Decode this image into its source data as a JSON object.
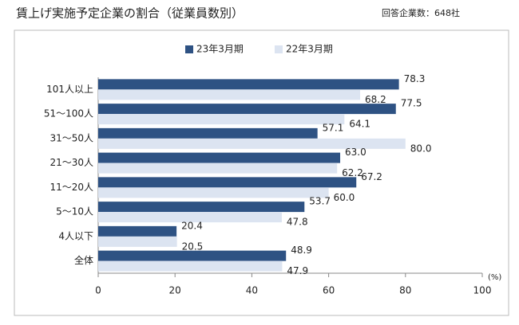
{
  "chart_data": {
    "type": "bar",
    "orientation": "horizontal",
    "title": "賃上げ実施予定企業の割合（従業員数別）",
    "note": "回答企業数：648社",
    "unit_label": "(%)",
    "categories": [
      "101人以上",
      "51～100人",
      "31～50人",
      "21～30人",
      "11～20人",
      "5～10人",
      "4人以下",
      "全体"
    ],
    "series": [
      {
        "name": "23年3月期",
        "color": "#2e5283",
        "values": [
          78.3,
          77.5,
          57.1,
          63.0,
          67.2,
          53.7,
          20.4,
          48.9
        ],
        "value_labels": [
          "78.3",
          "77.5",
          "57.1",
          "63.0",
          "67.2",
          "53.7",
          "20.4",
          "48.9"
        ]
      },
      {
        "name": "22年3月期",
        "color": "#dce4f1",
        "values": [
          68.2,
          64.1,
          80.0,
          62.2,
          60.0,
          47.8,
          20.5,
          47.9
        ],
        "value_labels": [
          "68.2",
          "64.1",
          "80.0",
          "62.2",
          "60.0",
          "47.8",
          "20.5",
          "47.9"
        ]
      }
    ],
    "xlim": [
      0,
      100
    ],
    "xticks": [
      0,
      20,
      40,
      60,
      80,
      100
    ]
  }
}
